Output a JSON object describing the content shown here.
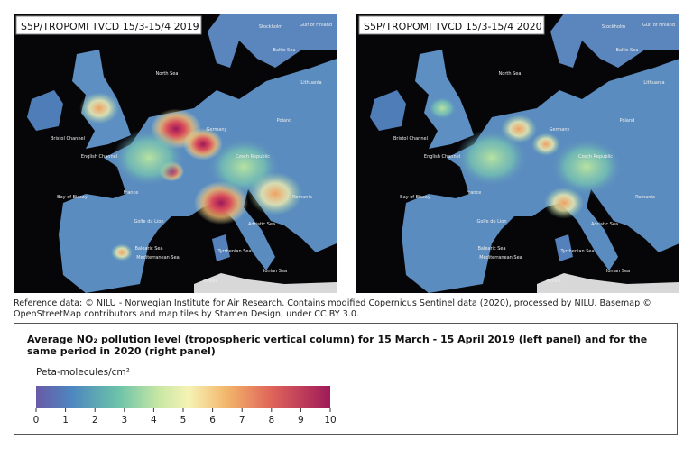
{
  "panels": [
    {
      "title": "S5P/TROPOMI TVCD 15/3-15/4 2019"
    },
    {
      "title": "S5P/TROPOMI TVCD 15/3-15/4 2020"
    }
  ],
  "map_labels": [
    "North Sea",
    "Baltic Sea",
    "Stockholm",
    "Gulf of Finland",
    "Lithuania",
    "English Channel",
    "Bristol Channel",
    "Bay of Biscay",
    "France",
    "Germany",
    "Czech Republic",
    "Poland",
    "Romania",
    "Golfe du Lion",
    "Adriatic Sea",
    "Tyrrhenian Sea",
    "Balearic Sea",
    "Mediterranean Sea",
    "Ionian Sea",
    "Tunisia"
  ],
  "reference": "Reference data: © NILU - Norwegian Institute for Air Research. Contains modified Copernicus Sentinel data (2020), processed by NILU. Basemap © OpenStreetMap contributors and map tiles by Stamen Design, under CC BY 3.0.",
  "legend": {
    "title": "Average NO₂ pollution level (tropospheric vertical column) for 15 March - 15 April 2019 (left panel) and for the same period in 2020 (right panel)",
    "unit": "Peta-molecules/cm²",
    "range": [
      0,
      10
    ],
    "ticks": [
      0,
      1,
      2,
      3,
      4,
      5,
      6,
      7,
      8,
      9,
      10
    ]
  }
}
